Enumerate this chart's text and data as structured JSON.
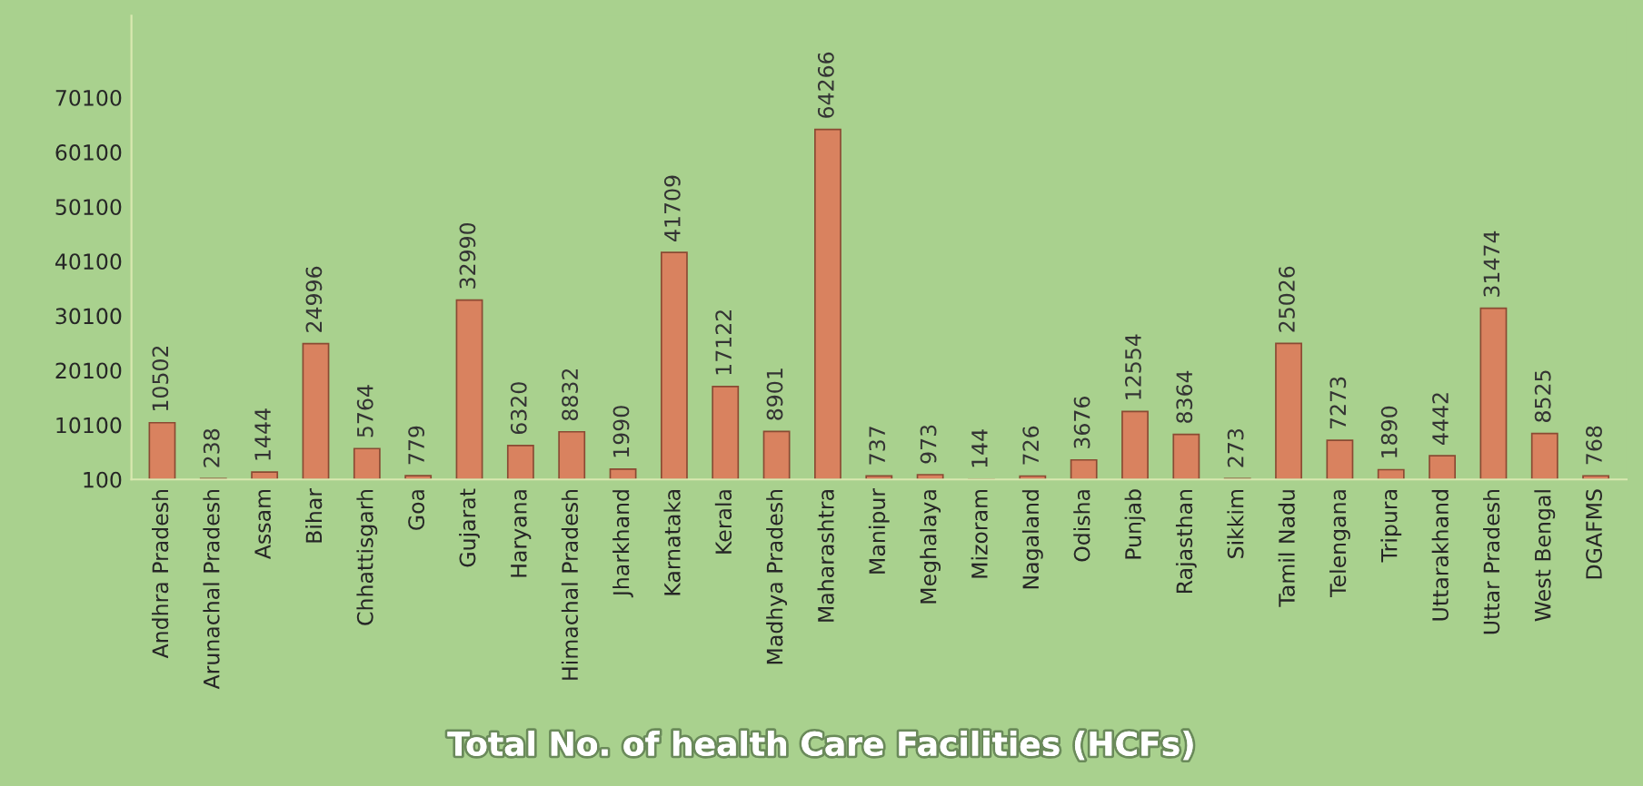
{
  "chart_data": {
    "type": "bar",
    "title": "Total No. of health Care Facilities (HCFs)",
    "categories": [
      "Andhra Pradesh",
      "Arunachal Pradesh",
      "Assam",
      "Bihar",
      "Chhattisgarh",
      "Goa",
      "Gujarat",
      "Haryana",
      "Himachal Pradesh",
      "Jharkhand",
      "Karnataka",
      "Kerala",
      "Madhya Pradesh",
      "Maharashtra",
      "Manipur",
      "Meghalaya",
      "Mizoram",
      "Nagaland",
      "Odisha",
      "Punjab",
      "Rajasthan",
      "Sikkim",
      "Tamil Nadu",
      "Telengana",
      "Tripura",
      "Uttarakhand",
      "Uttar Pradesh",
      "West Bengal",
      "DGAFMS"
    ],
    "values": [
      10502,
      238,
      1444,
      24996,
      5764,
      779,
      32990,
      6320,
      8832,
      1990,
      41709,
      17122,
      8901,
      64266,
      737,
      973,
      144,
      726,
      3676,
      12554,
      8364,
      273,
      25026,
      7273,
      1890,
      4442,
      31474,
      8525,
      768
    ],
    "color": "#d9825f",
    "data_labels": true,
    "grid": false,
    "legend": false,
    "ylim": [
      100,
      85100
    ],
    "yticks": [
      100,
      10100,
      20100,
      30100,
      40100,
      50100,
      60100,
      70100
    ]
  }
}
